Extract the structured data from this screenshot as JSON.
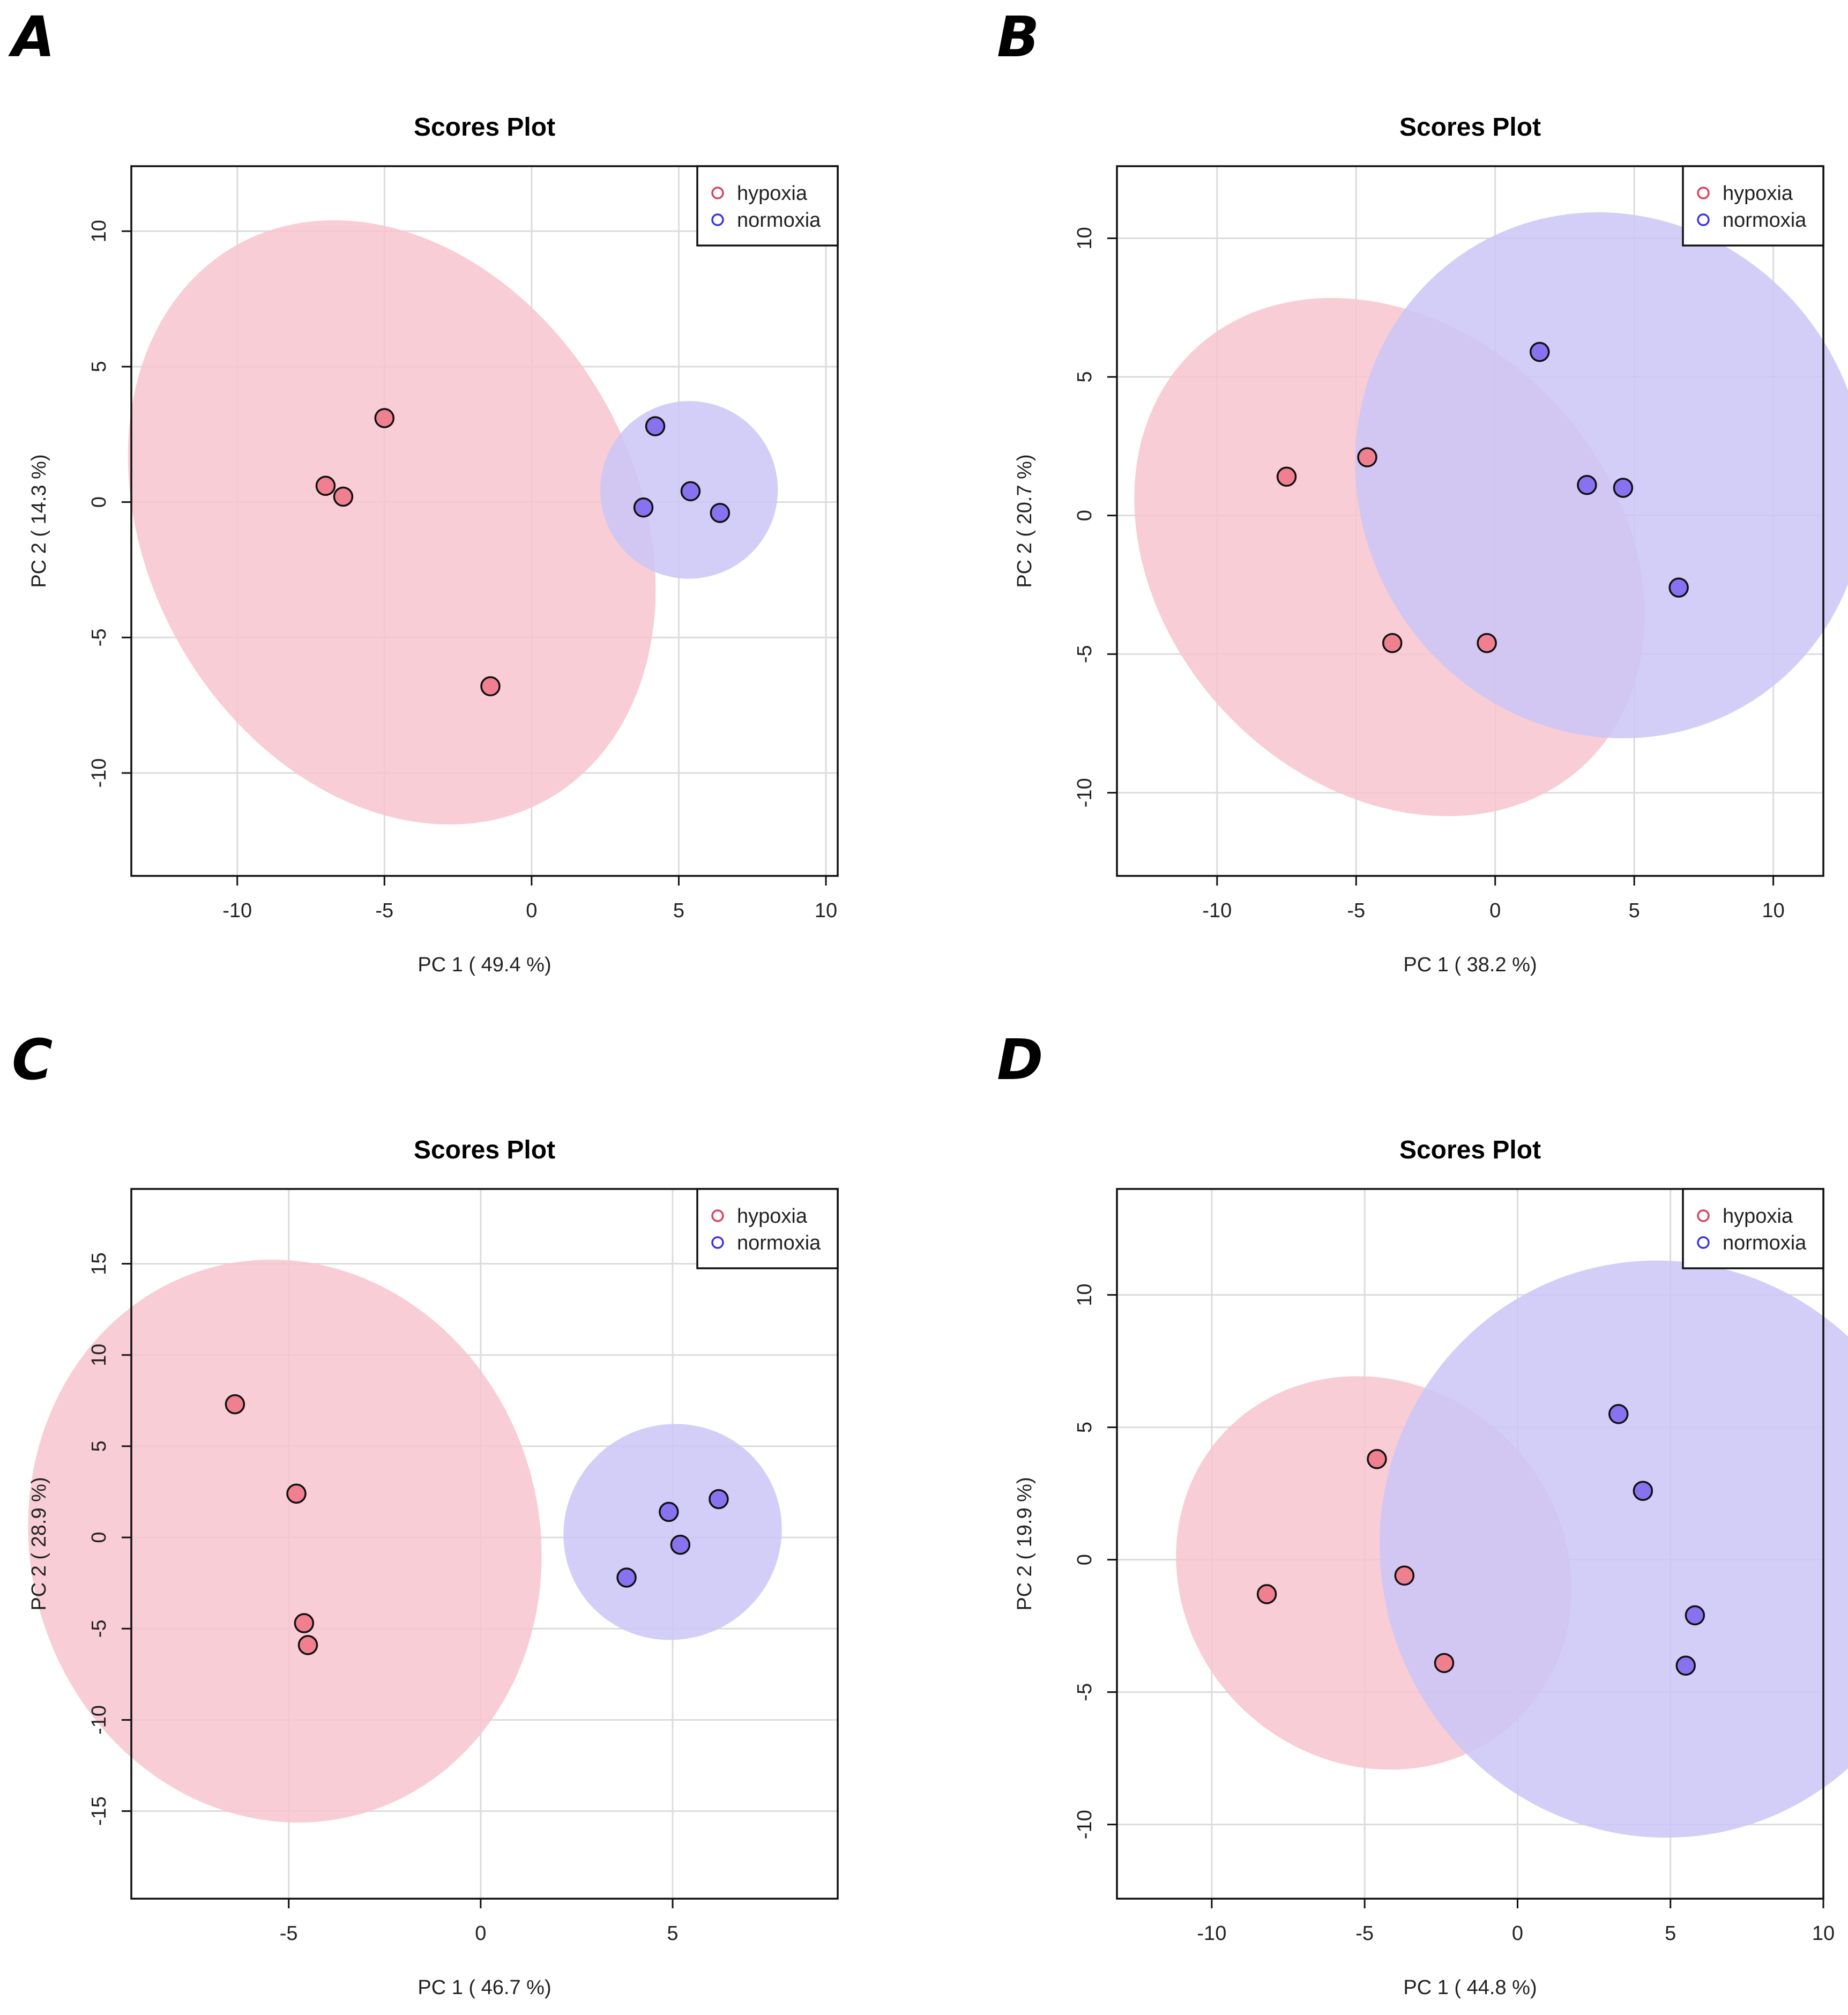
{
  "colors": {
    "hypoxia_fill": "#f08090",
    "hypoxia_ellipse": "#f7c4ce",
    "normoxia_fill": "#8872f0",
    "normoxia_ellipse": "#cbc5f7",
    "grid": "#dcdcdc",
    "hypoxia_legend": "#e0405a",
    "normoxia_legend": "#3a34e6"
  },
  "chart_data": [
    {
      "panel": "A",
      "type": "scatter",
      "title": "Scores Plot",
      "xlabel": "PC 1 ( 49.4 %)",
      "ylabel": "PC 2 ( 14.3 %)",
      "xlim": [
        -13.6,
        10.4
      ],
      "ylim": [
        -13.8,
        12.4
      ],
      "xticks": [
        -10,
        -5,
        0,
        5,
        10
      ],
      "xtick_labels": [
        "-10",
        "-5",
        "0",
        "5",
        "10"
      ],
      "yticks": [
        -10,
        -5,
        0,
        5,
        10
      ],
      "ytick_labels": [
        "-10",
        "-5",
        "0",
        "5",
        "10"
      ],
      "legend": [
        "hypoxia",
        "normoxia"
      ],
      "legend_position": "top-right",
      "series": [
        {
          "name": "hypoxia",
          "points": [
            [
              -7.0,
              0.6
            ],
            [
              -6.4,
              0.2
            ],
            [
              -5.0,
              3.1
            ],
            [
              -1.4,
              -6.8
            ]
          ],
          "ellipse": {
            "cx": -4.5,
            "cy": -1.0,
            "corners": [
              [
                -10.0,
                9.5
              ],
              [
                0.5,
                -11.0
              ],
              [
                -9.6,
                6.6
              ],
              [
                -1.2,
                -9.0
              ]
            ]
          }
        },
        {
          "name": "normoxia",
          "points": [
            [
              4.2,
              2.8
            ],
            [
              3.8,
              -0.2
            ],
            [
              5.4,
              0.4
            ],
            [
              6.4,
              -0.4
            ]
          ],
          "ellipse": {
            "cx": 4.9,
            "cy": 0.65,
            "corners": [
              [
                3.0,
                2.5
              ],
              [
                7.7,
                -1.6
              ],
              [
                5.8,
                3.5
              ],
              [
                4.1,
                -2.8
              ]
            ]
          }
        }
      ]
    },
    {
      "panel": "B",
      "type": "scatter",
      "title": "Scores Plot",
      "xlabel": "PC 1 ( 38.2 %)",
      "ylabel": "PC 2 ( 20.7 %)",
      "xlim": [
        -13.6,
        11.8
      ],
      "ylim": [
        -13.0,
        12.6
      ],
      "xticks": [
        -10,
        -5,
        0,
        5,
        10
      ],
      "xtick_labels": [
        "-10",
        "-5",
        "0",
        "5",
        "10"
      ],
      "yticks": [
        -10,
        -5,
        0,
        5,
        10
      ],
      "ytick_labels": [
        "-10",
        "-5",
        "0",
        "5",
        "10"
      ],
      "legend": [
        "hypoxia",
        "normoxia"
      ],
      "legend_position": "top-right",
      "series": [
        {
          "name": "hypoxia",
          "points": [
            [
              -7.5,
              1.4
            ],
            [
              -4.6,
              2.1
            ],
            [
              -3.7,
              -4.6
            ],
            [
              -0.3,
              -4.6
            ]
          ],
          "ellipse": {
            "cx": -4.0,
            "cy": -1.4,
            "corners": [
              [
                -10.8,
                6.0
              ],
              [
                3.2,
                -9.0
              ],
              [
                -11.0,
                3.3
              ],
              [
                2.0,
                -6.5
              ]
            ]
          }
        },
        {
          "name": "normoxia",
          "points": [
            [
              1.6,
              5.9
            ],
            [
              3.3,
              1.1
            ],
            [
              4.6,
              1.0
            ],
            [
              6.6,
              -2.6
            ]
          ],
          "ellipse": {
            "cx": 4.0,
            "cy": 1.35,
            "corners": [
              [
                -0.6,
                9.8
              ],
              [
                8.9,
                -6.9
              ],
              [
                -0.4,
                9.3
              ],
              [
                8.7,
                -6.4
              ]
            ]
          }
        }
      ]
    },
    {
      "panel": "C",
      "type": "scatter",
      "title": "Scores Plot",
      "xlabel": "PC 1 ( 46.7 %)",
      "ylabel": "PC 2 ( 28.9 %)",
      "xlim": [
        -9.1,
        9.3
      ],
      "ylim": [
        -19.8,
        19.1
      ],
      "xticks": [
        -5,
        0,
        5
      ],
      "xtick_labels": [
        "-5",
        "0",
        "5"
      ],
      "yticks": [
        -15,
        -10,
        -5,
        0,
        5,
        10,
        15
      ],
      "ytick_labels": [
        "-15",
        "-10",
        "-5",
        "0",
        "5",
        "10",
        "15"
      ],
      "legend": [
        "hypoxia",
        "normoxia"
      ],
      "legend_position": "top-right",
      "series": [
        {
          "name": "hypoxia",
          "points": [
            [
              -6.4,
              7.3
            ],
            [
              -4.8,
              2.4
            ],
            [
              -4.6,
              -4.7
            ],
            [
              -4.5,
              -5.9
            ]
          ],
          "ellipse": {
            "cx": -5.1,
            "cy": -0.2,
            "corners": [
              [
                -7.0,
                14.8
              ],
              [
                -3.2,
                -15.2
              ],
              [
                -6.8,
                13.3
              ],
              [
                -3.4,
                -13.7
              ]
            ]
          }
        },
        {
          "name": "normoxia",
          "points": [
            [
              4.9,
              1.4
            ],
            [
              5.2,
              -0.4
            ],
            [
              6.2,
              2.1
            ],
            [
              3.8,
              -2.2
            ]
          ],
          "ellipse": {
            "cx": 5.0,
            "cy": 0.3,
            "corners": [
              [
                2.6,
                -3.0
              ],
              [
                7.4,
                3.6
              ],
              [
                3.1,
                -4.0
              ],
              [
                6.9,
                4.6
              ]
            ]
          }
        }
      ]
    },
    {
      "panel": "D",
      "type": "scatter",
      "title": "Scores Plot",
      "xlabel": "PC 1 ( 44.8 %)",
      "ylabel": "PC 2 ( 19.9 %)",
      "xlim": [
        -13.1,
        10.0
      ],
      "ylim": [
        -12.8,
        14.0
      ],
      "xticks": [
        -10,
        -5,
        0,
        5,
        10
      ],
      "xtick_labels": [
        "-10",
        "-5",
        "0",
        "5",
        "10"
      ],
      "yticks": [
        -10,
        -5,
        0,
        5,
        10
      ],
      "ytick_labels": [
        "-10",
        "-5",
        "0",
        "5",
        "10"
      ],
      "legend": [
        "hypoxia",
        "normoxia"
      ],
      "legend_position": "top-right",
      "series": [
        {
          "name": "hypoxia",
          "points": [
            [
              -8.2,
              -1.3
            ],
            [
              -4.6,
              3.8
            ],
            [
              -3.7,
              -0.6
            ],
            [
              -2.4,
              -3.9
            ]
          ],
          "ellipse": {
            "cx": -4.7,
            "cy": -0.5,
            "corners": [
              [
                -9.6,
                4.8
              ],
              [
                0.2,
                -5.8
              ],
              [
                -1.5,
                5.6
              ],
              [
                -7.9,
                -6.6
              ]
            ]
          }
        },
        {
          "name": "normoxia",
          "points": [
            [
              3.3,
              5.5
            ],
            [
              4.1,
              2.6
            ],
            [
              5.8,
              -2.1
            ],
            [
              5.5,
              -4.0
            ]
          ],
          "ellipse": {
            "cx": 4.7,
            "cy": 0.4,
            "corners": [
              [
                1.8,
                10.8
              ],
              [
                7.6,
                -10.0
              ],
              [
                1.9,
                10.5
              ],
              [
                7.5,
                -9.7
              ]
            ]
          }
        }
      ]
    }
  ]
}
